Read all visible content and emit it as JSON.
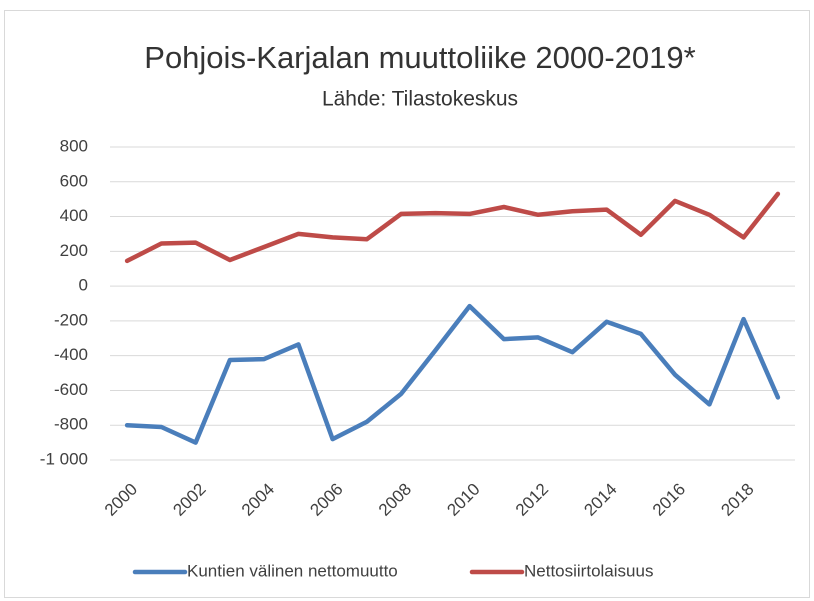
{
  "chart_data": {
    "type": "line",
    "title": "Pohjois-Karjalan muuttoliike 2000-2019*",
    "subtitle": "Lähde: Tilastokeskus",
    "categories": [
      "2000",
      null,
      "2002",
      null,
      "2004",
      null,
      "2006",
      null,
      "2008",
      null,
      "2010",
      null,
      "2012",
      null,
      "2014",
      null,
      "2016",
      null,
      "2018",
      null
    ],
    "series": [
      {
        "name": "Kuntien välinen nettomuutto",
        "color": "#4a7ebb",
        "values": [
          -800,
          -810,
          -900,
          -425,
          -420,
          -335,
          -880,
          -780,
          -620,
          -370,
          -115,
          -305,
          -295,
          -380,
          -205,
          -275,
          -510,
          -680,
          -190,
          -640
        ]
      },
      {
        "name": "Nettosiirtolaisuus",
        "color": "#be4b48",
        "values": [
          145,
          245,
          250,
          150,
          225,
          300,
          280,
          270,
          415,
          420,
          415,
          455,
          410,
          430,
          440,
          295,
          490,
          410,
          280,
          530
        ]
      }
    ],
    "ylim": [
      -1000,
      800
    ],
    "yticks": [
      {
        "value": -1000,
        "label": "-1 000"
      },
      -800,
      -600,
      -400,
      -200,
      0,
      200,
      400,
      600,
      800
    ],
    "grid": true,
    "legend": "bottom"
  }
}
